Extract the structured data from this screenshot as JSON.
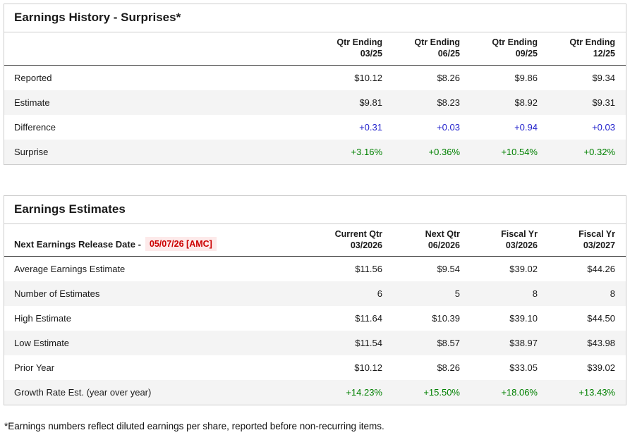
{
  "colors": {
    "positive_blue": "#2222cc",
    "positive_green": "#008000",
    "alert_red": "#cc0000",
    "alert_bg": "#fdeaea",
    "border": "#cccccc",
    "row_alt": "#f4f4f4",
    "header_rule": "#333333"
  },
  "history": {
    "title": "Earnings History - Surprises*",
    "columns": [
      {
        "line1": "Qtr Ending",
        "line2": "03/25"
      },
      {
        "line1": "Qtr Ending",
        "line2": "06/25"
      },
      {
        "line1": "Qtr Ending",
        "line2": "09/25"
      },
      {
        "line1": "Qtr Ending",
        "line2": "12/25"
      }
    ],
    "rows": [
      {
        "label": "Reported",
        "values": [
          "$10.12",
          "$8.26",
          "$9.86",
          "$9.34"
        ]
      },
      {
        "label": "Estimate",
        "values": [
          "$9.81",
          "$8.23",
          "$8.92",
          "$9.31"
        ]
      },
      {
        "label": "Difference",
        "values": [
          "+0.31",
          "+0.03",
          "+0.94",
          "+0.03"
        ]
      },
      {
        "label": "Surprise",
        "values": [
          "+3.16%",
          "+0.36%",
          "+10.54%",
          "+0.32%"
        ]
      }
    ]
  },
  "estimates": {
    "title": "Earnings Estimates",
    "release_label": "Next Earnings Release Date -",
    "release_date": "05/07/26 [AMC]",
    "columns": [
      {
        "line1": "Current Qtr",
        "line2": "03/2026"
      },
      {
        "line1": "Next Qtr",
        "line2": "06/2026"
      },
      {
        "line1": "Fiscal Yr",
        "line2": "03/2026"
      },
      {
        "line1": "Fiscal Yr",
        "line2": "03/2027"
      }
    ],
    "rows": [
      {
        "label": "Average Earnings Estimate",
        "values": [
          "$11.56",
          "$9.54",
          "$39.02",
          "$44.26"
        ]
      },
      {
        "label": "Number of Estimates",
        "values": [
          "6",
          "5",
          "8",
          "8"
        ]
      },
      {
        "label": "High Estimate",
        "values": [
          "$11.64",
          "$10.39",
          "$39.10",
          "$44.50"
        ]
      },
      {
        "label": "Low Estimate",
        "values": [
          "$11.54",
          "$8.57",
          "$38.97",
          "$43.98"
        ]
      },
      {
        "label": "Prior Year",
        "values": [
          "$10.12",
          "$8.26",
          "$33.05",
          "$39.02"
        ]
      },
      {
        "label": "Growth Rate Est. (year over year)",
        "values": [
          "+14.23%",
          "+15.50%",
          "+18.06%",
          "+13.43%"
        ]
      }
    ]
  },
  "footnote": "*Earnings numbers reflect diluted earnings per share, reported before non-recurring items."
}
